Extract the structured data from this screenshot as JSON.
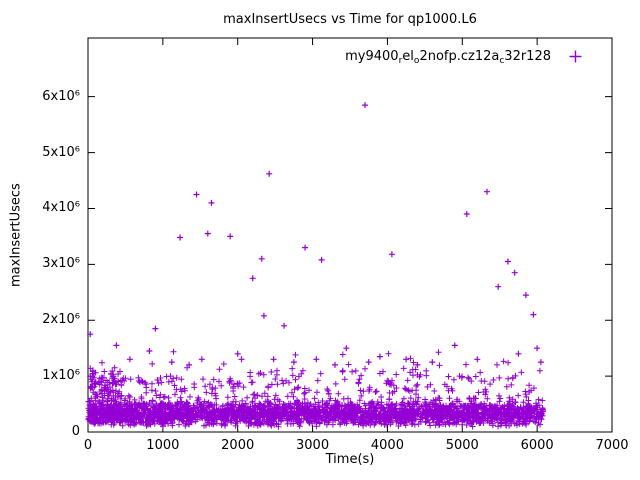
{
  "title": "maxInsertUsecs vs Time for qp1000.L6",
  "legend": {
    "series_label_plain": "my9400_rel_o2nofp.cz12a_c32r128",
    "segments": [
      {
        "t": "my9400"
      },
      {
        "s": "r"
      },
      {
        "t": "el"
      },
      {
        "s": "o"
      },
      {
        "t": "2nofp.cz12a"
      },
      {
        "s": "c"
      },
      {
        "t": "32r128"
      }
    ]
  },
  "chart_data": {
    "type": "scatter",
    "title": "maxInsertUsecs vs Time for qp1000.L6",
    "xlabel": "Time(s)",
    "ylabel": "maxInsertUsecs",
    "xlim": [
      0,
      7000
    ],
    "ylim": [
      0,
      7050000
    ],
    "grid": false,
    "legend_position": "top-right-inside",
    "marker": "plus",
    "marker_color": "#9400D3",
    "series_name": "my9400_rel_o2nofp.cz12a_c32r128",
    "xticks": [
      {
        "v": 0,
        "label": "0"
      },
      {
        "v": 1000,
        "label": "1000"
      },
      {
        "v": 2000,
        "label": "2000"
      },
      {
        "v": 3000,
        "label": "3000"
      },
      {
        "v": 4000,
        "label": "4000"
      },
      {
        "v": 5000,
        "label": "5000"
      },
      {
        "v": 6000,
        "label": "6000"
      },
      {
        "v": 7000,
        "label": "7000"
      }
    ],
    "yticks": [
      {
        "v": 0,
        "label": "0"
      },
      {
        "v": 1000000,
        "label": "1x10⁶"
      },
      {
        "v": 2000000,
        "label": "2x10⁶"
      },
      {
        "v": 3000000,
        "label": "3x10⁶"
      },
      {
        "v": 4000000,
        "label": "4x10⁶"
      },
      {
        "v": 5000000,
        "label": "5x10⁶"
      },
      {
        "v": 6000000,
        "label": "6x10⁶"
      }
    ],
    "outliers": [
      [
        30,
        1750000
      ],
      [
        380,
        1550000
      ],
      [
        560,
        1300000
      ],
      [
        820,
        1450000
      ],
      [
        900,
        1850000
      ],
      [
        1120,
        1250000
      ],
      [
        1230,
        3480000
      ],
      [
        1350,
        1200000
      ],
      [
        1450,
        4250000
      ],
      [
        1520,
        1300000
      ],
      [
        1600,
        3550000
      ],
      [
        1650,
        4100000
      ],
      [
        1900,
        3500000
      ],
      [
        2000,
        1400000
      ],
      [
        2050,
        1300000
      ],
      [
        2200,
        2750000
      ],
      [
        2320,
        3100000
      ],
      [
        2350,
        2080000
      ],
      [
        2420,
        4620000
      ],
      [
        2480,
        1300000
      ],
      [
        2620,
        1900000
      ],
      [
        2750,
        1250000
      ],
      [
        2900,
        3300000
      ],
      [
        3050,
        1300000
      ],
      [
        3120,
        3080000
      ],
      [
        3300,
        1200000
      ],
      [
        3450,
        1500000
      ],
      [
        3700,
        5850000
      ],
      [
        3750,
        1250000
      ],
      [
        3900,
        1350000
      ],
      [
        4060,
        3180000
      ],
      [
        4250,
        1300000
      ],
      [
        4400,
        1200000
      ],
      [
        4600,
        1250000
      ],
      [
        4900,
        1550000
      ],
      [
        5060,
        3900000
      ],
      [
        5200,
        1300000
      ],
      [
        5330,
        4300000
      ],
      [
        5480,
        2600000
      ],
      [
        5610,
        3050000
      ],
      [
        5700,
        2850000
      ],
      [
        5750,
        1400000
      ],
      [
        5850,
        2450000
      ],
      [
        5950,
        2100000
      ],
      [
        6000,
        1500000
      ],
      [
        6050,
        1250000
      ]
    ],
    "dense_band": {
      "description": "dense cloud of samples along the bottom of the plot",
      "seed": 1337,
      "x_min": 0,
      "x_max": 6080,
      "core_count": 2600,
      "core_y_min": 90000,
      "core_y_max": 560000,
      "mid_count": 380,
      "mid_y_min": 450000,
      "mid_y_max": 1100000,
      "left_count": 130,
      "left_x_max": 450,
      "left_y_min": 200000,
      "left_y_max": 1150000,
      "high_count": 50,
      "high_y_min": 750000,
      "high_y_max": 1450000
    }
  }
}
